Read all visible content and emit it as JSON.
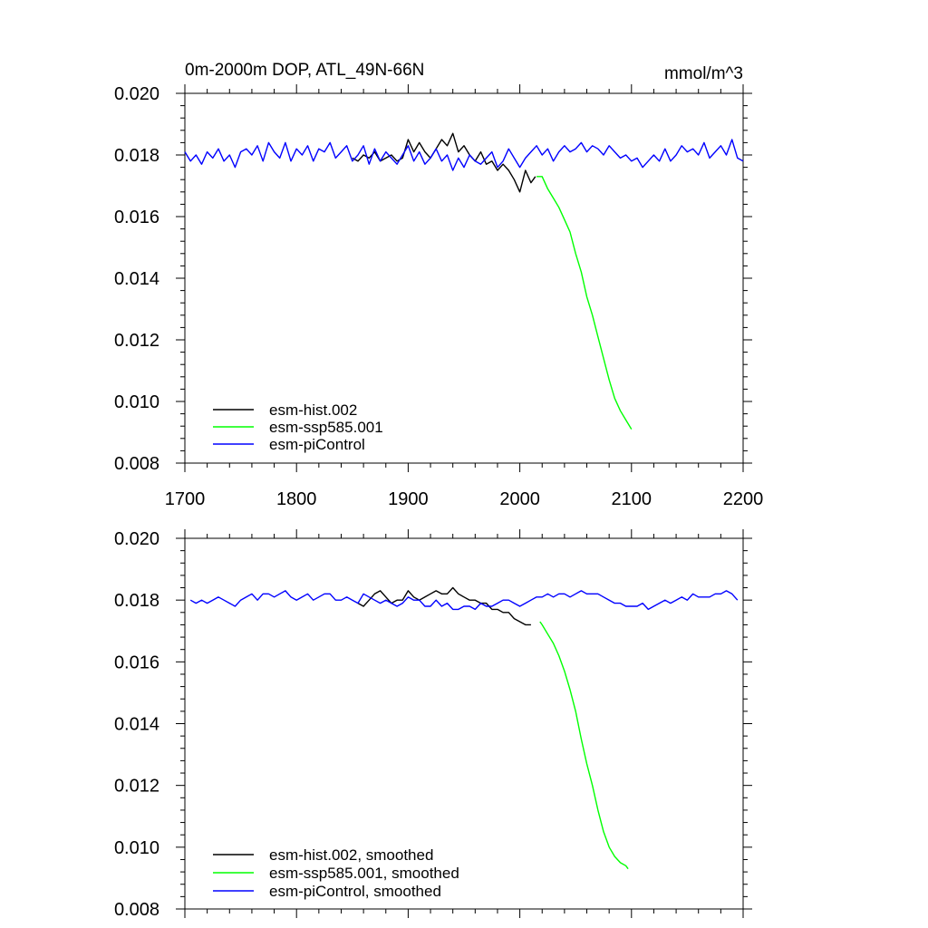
{
  "chart_data": [
    {
      "type": "line",
      "title": "0m-2000m DOP, ATL_49N-66N",
      "units": "mmol/m^3",
      "xlim": [
        1700,
        2200
      ],
      "ylim": [
        0.008,
        0.02
      ],
      "x_ticks": [
        1700,
        1800,
        1900,
        2000,
        2100,
        2200
      ],
      "y_ticks": [
        "0.020",
        "0.018",
        "0.016",
        "0.014",
        "0.012",
        "0.010",
        "0.008"
      ],
      "show_x_tick_labels": true,
      "grid": false,
      "legend_position": "bottom-left",
      "series": [
        {
          "name": "esm-hist.002",
          "color": "#000000",
          "x": [
            1850,
            1855,
            1860,
            1865,
            1870,
            1875,
            1880,
            1885,
            1890,
            1895,
            1900,
            1905,
            1910,
            1915,
            1920,
            1925,
            1930,
            1935,
            1940,
            1945,
            1950,
            1955,
            1960,
            1965,
            1970,
            1975,
            1980,
            1985,
            1990,
            1995,
            2000,
            2005,
            2010,
            2014
          ],
          "y": [
            0.0179,
            0.0178,
            0.018,
            0.0179,
            0.0181,
            0.0178,
            0.0179,
            0.018,
            0.0178,
            0.0179,
            0.0185,
            0.0181,
            0.0184,
            0.0181,
            0.0179,
            0.0182,
            0.0185,
            0.0183,
            0.0187,
            0.0181,
            0.0183,
            0.018,
            0.0178,
            0.0181,
            0.0177,
            0.0178,
            0.0175,
            0.0177,
            0.0175,
            0.0172,
            0.0168,
            0.0175,
            0.0171,
            0.0173
          ]
        },
        {
          "name": "esm-ssp585.001",
          "color": "#00ff00",
          "x": [
            2015,
            2020,
            2025,
            2030,
            2035,
            2040,
            2045,
            2050,
            2055,
            2060,
            2065,
            2070,
            2075,
            2080,
            2085,
            2090,
            2095,
            2100
          ],
          "y": [
            0.0173,
            0.0173,
            0.0169,
            0.0166,
            0.0163,
            0.0159,
            0.0155,
            0.0148,
            0.0142,
            0.0134,
            0.0128,
            0.0121,
            0.0114,
            0.0107,
            0.0101,
            0.0097,
            0.0094,
            0.0091
          ]
        },
        {
          "name": "esm-piControl",
          "color": "#0000ff",
          "x": [
            1700,
            1705,
            1710,
            1715,
            1720,
            1725,
            1730,
            1735,
            1740,
            1745,
            1750,
            1755,
            1760,
            1765,
            1770,
            1775,
            1780,
            1785,
            1790,
            1795,
            1800,
            1805,
            1810,
            1815,
            1820,
            1825,
            1830,
            1835,
            1840,
            1845,
            1850,
            1855,
            1860,
            1865,
            1870,
            1875,
            1880,
            1885,
            1890,
            1895,
            1900,
            1905,
            1910,
            1915,
            1920,
            1925,
            1930,
            1935,
            1940,
            1945,
            1950,
            1955,
            1960,
            1965,
            1970,
            1975,
            1980,
            1985,
            1990,
            1995,
            2000,
            2005,
            2010,
            2015,
            2020,
            2025,
            2030,
            2035,
            2040,
            2045,
            2050,
            2055,
            2060,
            2065,
            2070,
            2075,
            2080,
            2085,
            2090,
            2095,
            2100,
            2105,
            2110,
            2115,
            2120,
            2125,
            2130,
            2135,
            2140,
            2145,
            2150,
            2155,
            2160,
            2165,
            2170,
            2175,
            2180,
            2185,
            2190,
            2195,
            2200
          ],
          "y": [
            0.0181,
            0.0178,
            0.018,
            0.0177,
            0.0181,
            0.0179,
            0.0182,
            0.0178,
            0.018,
            0.0176,
            0.0181,
            0.0182,
            0.018,
            0.0183,
            0.0178,
            0.0184,
            0.0181,
            0.0179,
            0.0184,
            0.0178,
            0.0182,
            0.018,
            0.0183,
            0.0178,
            0.0182,
            0.0181,
            0.0184,
            0.0179,
            0.0181,
            0.0183,
            0.0178,
            0.018,
            0.0183,
            0.0177,
            0.0182,
            0.0178,
            0.0181,
            0.0179,
            0.0177,
            0.018,
            0.0183,
            0.0178,
            0.0181,
            0.0177,
            0.0179,
            0.0182,
            0.0178,
            0.018,
            0.0175,
            0.0179,
            0.0176,
            0.018,
            0.0178,
            0.0177,
            0.0179,
            0.0181,
            0.0176,
            0.0178,
            0.0182,
            0.0179,
            0.0176,
            0.0179,
            0.0181,
            0.0183,
            0.018,
            0.0182,
            0.0178,
            0.0181,
            0.0183,
            0.0181,
            0.0182,
            0.0184,
            0.0181,
            0.0183,
            0.0182,
            0.018,
            0.0183,
            0.0181,
            0.0179,
            0.018,
            0.0178,
            0.0179,
            0.0176,
            0.0178,
            0.018,
            0.0178,
            0.0182,
            0.0178,
            0.018,
            0.0183,
            0.0181,
            0.0182,
            0.018,
            0.0184,
            0.0179,
            0.0181,
            0.0183,
            0.018,
            0.0185,
            0.0179,
            0.0178
          ]
        }
      ]
    },
    {
      "type": "line",
      "title": "",
      "units": "",
      "xlim": [
        1700,
        2200
      ],
      "ylim": [
        0.008,
        0.02
      ],
      "x_ticks": [
        1700,
        1800,
        1900,
        2000,
        2100,
        2200
      ],
      "y_ticks": [
        "0.020",
        "0.018",
        "0.016",
        "0.014",
        "0.012",
        "0.010",
        "0.008"
      ],
      "show_x_tick_labels": false,
      "grid": false,
      "legend_position": "bottom-left",
      "series": [
        {
          "name": "esm-hist.002, smoothed",
          "color": "#000000",
          "x": [
            1855,
            1860,
            1865,
            1870,
            1875,
            1880,
            1885,
            1890,
            1895,
            1900,
            1905,
            1910,
            1915,
            1920,
            1925,
            1930,
            1935,
            1940,
            1945,
            1950,
            1955,
            1960,
            1965,
            1970,
            1975,
            1980,
            1985,
            1990,
            1995,
            2000,
            2005,
            2010
          ],
          "y": [
            0.0179,
            0.0178,
            0.018,
            0.0182,
            0.0183,
            0.0181,
            0.0179,
            0.018,
            0.018,
            0.0183,
            0.0181,
            0.018,
            0.0181,
            0.0182,
            0.0183,
            0.0182,
            0.0182,
            0.0184,
            0.0182,
            0.0181,
            0.018,
            0.018,
            0.0179,
            0.0179,
            0.0177,
            0.0177,
            0.0176,
            0.0176,
            0.0174,
            0.0173,
            0.0172,
            0.0172
          ]
        },
        {
          "name": "esm-ssp585.001, smoothed",
          "color": "#00ff00",
          "x": [
            2018,
            2020,
            2025,
            2030,
            2035,
            2040,
            2045,
            2050,
            2055,
            2060,
            2065,
            2070,
            2075,
            2080,
            2085,
            2090,
            2095,
            2097
          ],
          "y": [
            0.0173,
            0.0172,
            0.0169,
            0.0166,
            0.0162,
            0.0157,
            0.0151,
            0.0144,
            0.0135,
            0.0127,
            0.012,
            0.0112,
            0.0105,
            0.01,
            0.0097,
            0.0095,
            0.0094,
            0.0093
          ]
        },
        {
          "name": "esm-piControl, smoothed",
          "color": "#0000ff",
          "x": [
            1705,
            1710,
            1715,
            1720,
            1725,
            1730,
            1735,
            1740,
            1745,
            1750,
            1755,
            1760,
            1765,
            1770,
            1775,
            1780,
            1785,
            1790,
            1795,
            1800,
            1805,
            1810,
            1815,
            1820,
            1825,
            1830,
            1835,
            1840,
            1845,
            1850,
            1855,
            1860,
            1865,
            1870,
            1875,
            1880,
            1885,
            1890,
            1895,
            1900,
            1905,
            1910,
            1915,
            1920,
            1925,
            1930,
            1935,
            1940,
            1945,
            1950,
            1955,
            1960,
            1965,
            1970,
            1975,
            1980,
            1985,
            1990,
            1995,
            2000,
            2005,
            2010,
            2015,
            2020,
            2025,
            2030,
            2035,
            2040,
            2045,
            2050,
            2055,
            2060,
            2065,
            2070,
            2075,
            2080,
            2085,
            2090,
            2095,
            2100,
            2105,
            2110,
            2115,
            2120,
            2125,
            2130,
            2135,
            2140,
            2145,
            2150,
            2155,
            2160,
            2165,
            2170,
            2175,
            2180,
            2185,
            2190,
            2195
          ],
          "y": [
            0.018,
            0.0179,
            0.018,
            0.0179,
            0.018,
            0.0181,
            0.018,
            0.0179,
            0.0178,
            0.018,
            0.0181,
            0.0182,
            0.018,
            0.0182,
            0.0182,
            0.0181,
            0.0182,
            0.0183,
            0.0181,
            0.018,
            0.0181,
            0.0182,
            0.018,
            0.0181,
            0.0182,
            0.0182,
            0.018,
            0.018,
            0.0181,
            0.018,
            0.0179,
            0.0182,
            0.0181,
            0.018,
            0.0179,
            0.018,
            0.0179,
            0.0178,
            0.0179,
            0.0181,
            0.018,
            0.018,
            0.0178,
            0.0178,
            0.018,
            0.0178,
            0.0179,
            0.0177,
            0.0177,
            0.0178,
            0.0178,
            0.0177,
            0.0179,
            0.0178,
            0.0178,
            0.0179,
            0.018,
            0.018,
            0.0179,
            0.0178,
            0.0179,
            0.018,
            0.0181,
            0.0181,
            0.0182,
            0.0181,
            0.0182,
            0.0182,
            0.0181,
            0.0182,
            0.0183,
            0.0182,
            0.0182,
            0.0182,
            0.0181,
            0.018,
            0.0179,
            0.0179,
            0.0178,
            0.0178,
            0.0178,
            0.0179,
            0.0177,
            0.0178,
            0.0179,
            0.018,
            0.0179,
            0.018,
            0.0181,
            0.018,
            0.0182,
            0.0181,
            0.0181,
            0.0181,
            0.0182,
            0.0182,
            0.0183,
            0.0182,
            0.018
          ]
        }
      ]
    }
  ]
}
